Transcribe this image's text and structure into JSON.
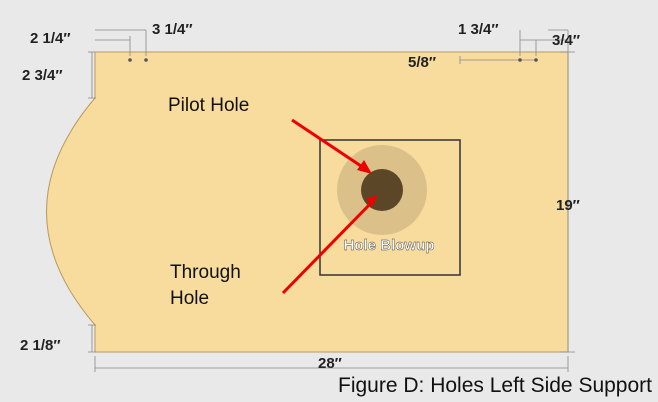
{
  "dimensions": {
    "top_left_1": "2 1/4″",
    "top_left_2": "3 1/4″",
    "left_top": "2 3/4″",
    "top_right_1": "1 3/4″",
    "top_right_2": "3/4″",
    "top_right_inner": "5/8″",
    "right": "19″",
    "left_bottom": "2 1/8″",
    "bottom": "28″"
  },
  "labels": {
    "pilot_hole": "Pilot Hole",
    "through_hole": [
      "Through",
      "Hole"
    ],
    "blowup": "Hole Blowup"
  },
  "caption": "Figure D: Holes Left Side Support"
}
